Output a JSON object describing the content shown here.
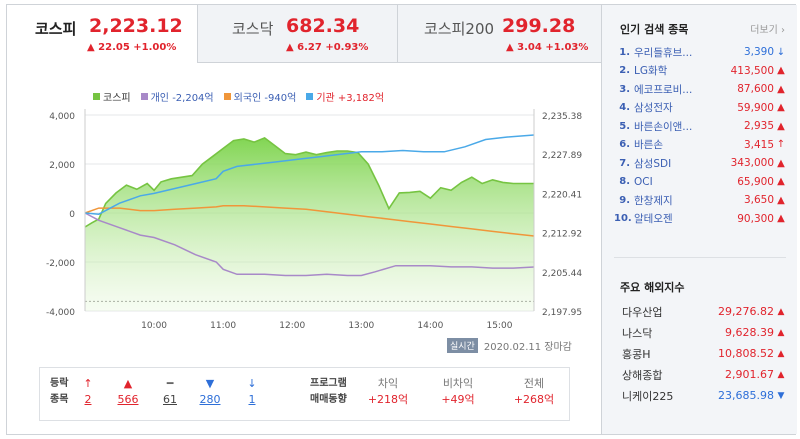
{
  "tabs": [
    {
      "name": "코스피",
      "value": "2,223.12",
      "change": "▲ 22.05 +1.00%"
    },
    {
      "name": "코스닥",
      "value": "682.34",
      "change": "▲ 6.27 +0.93%"
    },
    {
      "name": "코스피200",
      "value": "299.28",
      "change": "▲ 3.04 +1.03%"
    }
  ],
  "legend": [
    {
      "label": "코스피",
      "color": "#76c442"
    },
    {
      "label": "개인 -2,204억",
      "color": "#a889c8"
    },
    {
      "label": "외국인 -940억",
      "color": "#f0963a"
    },
    {
      "label": "기관 +3,182억",
      "color": "#4aa9e8"
    }
  ],
  "chart_data": {
    "type": "line",
    "x_ticks": [
      "10:00",
      "11:00",
      "12:00",
      "13:00",
      "14:00",
      "15:00"
    ],
    "y_left_ticks": [
      "4,000",
      "2,000",
      "0",
      "-2,000",
      "-4,000"
    ],
    "y_left_range": [
      -4000,
      4000
    ],
    "y_right_ticks": [
      "2,235.38",
      "2,227.89",
      "2,220.41",
      "2,212.92",
      "2,205.44",
      "2,197.95"
    ],
    "y_right_range": [
      2197.95,
      2235.38
    ],
    "x_range": [
      "09:00",
      "15:30"
    ],
    "series": [
      {
        "name": "코스피",
        "axis": "right",
        "color": "#76c442",
        "area": true,
        "x": [
          9.0,
          9.1,
          9.2,
          9.3,
          9.45,
          9.6,
          9.75,
          9.9,
          10.0,
          10.1,
          10.25,
          10.4,
          10.55,
          10.7,
          10.85,
          11.0,
          11.15,
          11.3,
          11.45,
          11.6,
          11.75,
          11.9,
          12.05,
          12.2,
          12.35,
          12.5,
          12.65,
          12.8,
          12.95,
          13.1,
          13.25,
          13.4,
          13.55,
          13.7,
          13.85,
          14.0,
          14.15,
          14.3,
          14.45,
          14.6,
          14.75,
          14.9,
          15.05,
          15.2,
          15.35,
          15.5
        ],
        "y": [
          2214.0,
          2214.8,
          2215.5,
          2218.5,
          2220.5,
          2222.0,
          2221.2,
          2222.3,
          2221.0,
          2222.6,
          2223.2,
          2223.5,
          2223.8,
          2226.0,
          2227.5,
          2229.0,
          2230.5,
          2230.8,
          2230.2,
          2231.0,
          2229.5,
          2228.0,
          2227.8,
          2228.3,
          2227.8,
          2228.2,
          2228.5,
          2228.5,
          2228.2,
          2226.0,
          2222.0,
          2217.5,
          2220.5,
          2220.6,
          2220.8,
          2219.5,
          2221.5,
          2221.0,
          2222.5,
          2223.5,
          2222.3,
          2223.0,
          2222.5,
          2222.3,
          2222.3,
          2222.3
        ]
      },
      {
        "name": "개인",
        "axis": "left",
        "color": "#a889c8",
        "x": [
          9.0,
          9.2,
          9.5,
          9.8,
          10.0,
          10.3,
          10.6,
          10.9,
          11.0,
          11.2,
          11.4,
          11.6,
          11.9,
          12.2,
          12.5,
          12.8,
          13.0,
          13.2,
          13.5,
          13.8,
          14.0,
          14.3,
          14.6,
          14.9,
          15.2,
          15.5
        ],
        "y": [
          0,
          -300,
          -600,
          -900,
          -1000,
          -1300,
          -1700,
          -2000,
          -2300,
          -2500,
          -2500,
          -2500,
          -2550,
          -2550,
          -2500,
          -2550,
          -2550,
          -2400,
          -2150,
          -2150,
          -2150,
          -2200,
          -2200,
          -2250,
          -2250,
          -2204
        ]
      },
      {
        "name": "외국인",
        "axis": "left",
        "color": "#f0963a",
        "x": [
          9.0,
          9.2,
          9.5,
          9.8,
          10.0,
          10.3,
          10.6,
          10.9,
          11.0,
          11.3,
          11.6,
          11.9,
          12.2,
          12.5,
          12.8,
          13.1,
          13.4,
          13.7,
          14.0,
          14.3,
          14.6,
          14.9,
          15.2,
          15.5
        ],
        "y": [
          0,
          200,
          200,
          100,
          100,
          150,
          200,
          250,
          300,
          300,
          250,
          200,
          150,
          50,
          -50,
          -150,
          -250,
          -350,
          -450,
          -550,
          -650,
          -750,
          -850,
          -940
        ]
      },
      {
        "name": "기관",
        "axis": "left",
        "color": "#4aa9e8",
        "x": [
          9.0,
          9.2,
          9.5,
          9.8,
          10.0,
          10.3,
          10.6,
          10.9,
          11.0,
          11.2,
          11.5,
          11.8,
          12.1,
          12.4,
          12.7,
          13.0,
          13.3,
          13.6,
          13.9,
          14.2,
          14.5,
          14.8,
          15.1,
          15.5
        ],
        "y": [
          0,
          -50,
          400,
          700,
          800,
          1000,
          1200,
          1400,
          1700,
          1900,
          2000,
          2100,
          2200,
          2300,
          2400,
          2500,
          2500,
          2550,
          2500,
          2500,
          2700,
          3000,
          3100,
          3182
        ]
      }
    ]
  },
  "chart_footer": {
    "badge": "실시간",
    "time": "2020.02.11 장마감"
  },
  "bottom": {
    "left_label_1": "등락",
    "left_label_2": "종목",
    "cols": [
      {
        "icon": "↑",
        "value": "2",
        "cls": "up"
      },
      {
        "icon": "▲",
        "value": "566",
        "cls": "up"
      },
      {
        "icon": "━",
        "value": "61",
        "cls": ""
      },
      {
        "icon": "▼",
        "value": "280",
        "cls": "dn"
      },
      {
        "icon": "↓",
        "value": "1",
        "cls": "dn"
      }
    ],
    "prog_label_1": "프로그램",
    "prog_label_2": "매매동향",
    "prog": [
      {
        "label": "차익",
        "value": "+218억"
      },
      {
        "label": "비차익",
        "value": "+49억"
      },
      {
        "label": "전체",
        "value": "+268억"
      }
    ]
  },
  "popular": {
    "title": "인기 검색 종목",
    "more": "더보기",
    "items": [
      {
        "no": "1.",
        "name": "우리들휴브...",
        "price": "3,390",
        "dir": "down",
        "arrow": "↓"
      },
      {
        "no": "2.",
        "name": "LG화학",
        "price": "413,500",
        "dir": "up",
        "arrow": "▲"
      },
      {
        "no": "3.",
        "name": "에코프로비...",
        "price": "87,600",
        "dir": "up",
        "arrow": "▲"
      },
      {
        "no": "4.",
        "name": "삼성전자",
        "price": "59,900",
        "dir": "up",
        "arrow": "▲"
      },
      {
        "no": "5.",
        "name": "바른손이앤...",
        "price": "2,935",
        "dir": "up",
        "arrow": "▲"
      },
      {
        "no": "6.",
        "name": "바른손",
        "price": "3,415",
        "dir": "up",
        "arrow": "↑"
      },
      {
        "no": "7.",
        "name": "삼성SDI",
        "price": "343,000",
        "dir": "up",
        "arrow": "▲"
      },
      {
        "no": "8.",
        "name": "OCI",
        "price": "65,900",
        "dir": "up",
        "arrow": "▲"
      },
      {
        "no": "9.",
        "name": "한창제지",
        "price": "3,650",
        "dir": "up",
        "arrow": "▲"
      },
      {
        "no": "10.",
        "name": "알테오젠",
        "price": "90,300",
        "dir": "up",
        "arrow": "▲"
      }
    ]
  },
  "overseas": {
    "title": "주요 해외지수",
    "items": [
      {
        "name": "다우산업",
        "price": "29,276.82",
        "dir": "up",
        "arrow": "▲"
      },
      {
        "name": "나스닥",
        "price": "9,628.39",
        "dir": "up",
        "arrow": "▲"
      },
      {
        "name": "홍콩H",
        "price": "10,808.52",
        "dir": "up",
        "arrow": "▲"
      },
      {
        "name": "상해종합",
        "price": "2,901.67",
        "dir": "up",
        "arrow": "▲"
      },
      {
        "name": "니케이225",
        "price": "23,685.98",
        "dir": "down",
        "arrow": "▼"
      }
    ]
  }
}
